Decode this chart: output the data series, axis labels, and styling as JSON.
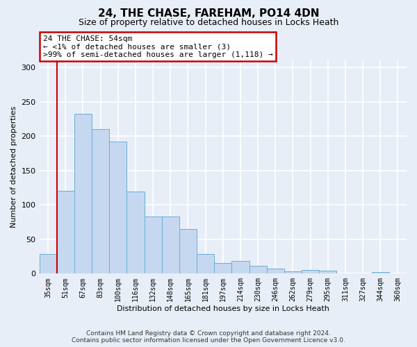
{
  "title": "24, THE CHASE, FAREHAM, PO14 4DN",
  "subtitle": "Size of property relative to detached houses in Locks Heath",
  "xlabel": "Distribution of detached houses by size in Locks Heath",
  "ylabel": "Number of detached properties",
  "categories": [
    "35sqm",
    "51sqm",
    "67sqm",
    "83sqm",
    "100sqm",
    "116sqm",
    "132sqm",
    "148sqm",
    "165sqm",
    "181sqm",
    "197sqm",
    "214sqm",
    "230sqm",
    "246sqm",
    "262sqm",
    "279sqm",
    "295sqm",
    "311sqm",
    "327sqm",
    "344sqm",
    "360sqm"
  ],
  "values": [
    29,
    120,
    232,
    210,
    192,
    119,
    83,
    83,
    65,
    29,
    15,
    18,
    11,
    7,
    3,
    5,
    4,
    0,
    0,
    2,
    0
  ],
  "bar_color": "#c5d8f0",
  "bar_edge_color": "#6aaed6",
  "vline_color": "#cc0000",
  "vline_x_index": 1,
  "annotation_title": "24 THE CHASE: 54sqm",
  "annotation_line1": "← <1% of detached houses are smaller (3)",
  "annotation_line2": ">99% of semi-detached houses are larger (1,118) →",
  "annotation_box_color": "#ffffff",
  "annotation_box_edge_color": "#cc0000",
  "ylim": [
    0,
    310
  ],
  "footer1": "Contains HM Land Registry data © Crown copyright and database right 2024.",
  "footer2": "Contains public sector information licensed under the Open Government Licence v3.0.",
  "background_color": "#e8eef8",
  "grid_color": "#ffffff"
}
